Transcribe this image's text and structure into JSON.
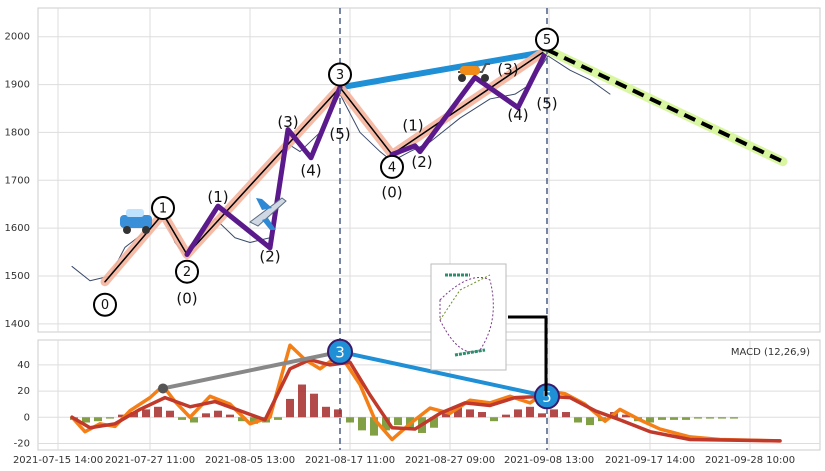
{
  "chart_data": [
    {
      "type": "line",
      "xlim": [
        0,
        782
      ],
      "ylim": [
        1383,
        2060
      ],
      "yticks": [
        1400,
        1500,
        1600,
        1700,
        1800,
        1900,
        2000
      ],
      "grid": true,
      "price": {
        "color": "#3a4a6b",
        "x": [
          34,
          52,
          72,
          87,
          112,
          125,
          137,
          149,
          162,
          177,
          197,
          212,
          232,
          247,
          262,
          282,
          302,
          322,
          342,
          354,
          372,
          392,
          422,
          452,
          477,
          492,
          510,
          532,
          552,
          572
        ],
        "values": [
          1520,
          1490,
          1500,
          1560,
          1600,
          1630,
          1570,
          1540,
          1580,
          1620,
          1580,
          1570,
          1580,
          1780,
          1760,
          1800,
          1880,
          1800,
          1760,
          1740,
          1760,
          1780,
          1830,
          1870,
          1880,
          1900,
          1960,
          1930,
          1910,
          1880
        ]
      },
      "impulse": {
        "color": "#f5b49c",
        "outline_color": "#000000",
        "x": [
          67,
          125,
          149,
          302,
          354,
          509
        ],
        "values": [
          1488,
          1630,
          1545,
          1894,
          1754,
          1973
        ]
      },
      "subwaves": {
        "color": "#5b1a8b",
        "waves": [
          {
            "x": [
              149,
              180,
              232,
              250,
              273,
              302
            ],
            "values": [
              1545,
              1646,
              1559,
              1806,
              1747,
              1894
            ]
          },
          {
            "x": [
              354,
              377,
              382,
              437,
              480,
              509
            ],
            "values": [
              1754,
              1772,
              1760,
              1915,
              1852,
              1973
            ]
          }
        ]
      },
      "trendline": {
        "color": "#1f8fd6",
        "x": [
          302,
          509
        ],
        "values": [
          1894,
          1969
        ]
      },
      "projection": {
        "color": "#000000",
        "underlay_color": "#d9f7a0",
        "x": [
          509,
          745
        ],
        "values": [
          1973,
          1739
        ]
      },
      "vlines": [
        302,
        509
      ],
      "annotations": [
        {
          "text": "0",
          "x": 67,
          "y": 1440,
          "circled": true
        },
        {
          "text": "1",
          "x": 125,
          "y": 1642,
          "circled": true
        },
        {
          "text": "2",
          "x": 149,
          "y": 1509,
          "circled": true
        },
        {
          "text": "3",
          "x": 302,
          "y": 1921,
          "circled": true
        },
        {
          "text": "4",
          "x": 354,
          "y": 1728,
          "circled": true
        },
        {
          "text": "5",
          "x": 509,
          "y": 1994,
          "circled": true
        },
        {
          "text": "(0)",
          "x": 149,
          "y": 1454
        },
        {
          "text": "(1)",
          "x": 180,
          "y": 1666
        },
        {
          "text": "(2)",
          "x": 232,
          "y": 1542
        },
        {
          "text": "(3)",
          "x": 250,
          "y": 1823
        },
        {
          "text": "(4)",
          "x": 273,
          "y": 1722
        },
        {
          "text": "(5)",
          "x": 302,
          "y": 1798
        },
        {
          "text": "(0)",
          "x": 354,
          "y": 1676
        },
        {
          "text": "(1)",
          "x": 375,
          "y": 1816
        },
        {
          "text": "(2)",
          "x": 384,
          "y": 1739
        },
        {
          "text": "(3)",
          "x": 470,
          "y": 1933
        },
        {
          "text": "(4)",
          "x": 480,
          "y": 1837
        },
        {
          "text": "(5)",
          "x": 509,
          "y": 1862
        }
      ]
    },
    {
      "type": "line",
      "xlim": [
        0,
        782
      ],
      "ylim": [
        -25,
        59
      ],
      "yticks": [
        -20,
        0,
        20,
        40
      ],
      "grid": true,
      "xticks": [
        {
          "value": 20,
          "label": "2021-07-15 14:00"
        },
        {
          "value": 112,
          "label": "2021-07-27 11:00"
        },
        {
          "value": 212,
          "label": "2021-08-05 13:00"
        },
        {
          "value": 312,
          "label": "2021-08-17 11:00"
        },
        {
          "value": 412,
          "label": "2021-08-27 09:00"
        },
        {
          "value": 511,
          "label": "2021-09-08 13:00"
        },
        {
          "value": 612,
          "label": "2021-09-17 14:00"
        },
        {
          "value": 712,
          "label": "2021-09-28 10:00"
        }
      ],
      "legend_text": "MACD (12,26,9)",
      "series": [
        {
          "color": "#f57f17",
          "x": [
            34,
            47,
            62,
            77,
            92,
            112,
            125,
            137,
            152,
            172,
            192,
            212,
            232,
            252,
            267,
            282,
            302,
            322,
            337,
            354,
            372,
            392,
            412,
            432,
            452,
            472,
            492,
            510,
            527,
            547,
            567,
            582,
            602,
            622,
            652,
            682,
            742
          ],
          "values": [
            0,
            -11,
            -5,
            -7,
            5,
            15,
            24,
            12,
            0,
            16,
            10,
            -5,
            0,
            55,
            44,
            37,
            48,
            25,
            -2,
            -17,
            -5,
            7,
            3,
            13,
            11,
            16,
            11,
            20,
            18,
            10,
            -3,
            6,
            -2,
            -9,
            -15,
            -17,
            -18
          ]
        },
        {
          "color": "#c0392b",
          "x": [
            34,
            52,
            77,
            102,
            127,
            152,
            177,
            202,
            227,
            252,
            272,
            292,
            312,
            332,
            354,
            377,
            402,
            427,
            452,
            477,
            507,
            532,
            557,
            582,
            612,
            652,
            742
          ],
          "values": [
            0,
            -8,
            -5,
            6,
            15,
            8,
            12,
            5,
            -2,
            37,
            44,
            40,
            42,
            17,
            -8,
            -9,
            3,
            11,
            9,
            15,
            16,
            15,
            5,
            -2,
            -11,
            -17,
            -18
          ]
        }
      ],
      "histogram": {
        "positive_color": "#a52a2a",
        "negative_color": "#6b8e23",
        "x": [
          36,
          48,
          60,
          72,
          84,
          96,
          108,
          120,
          132,
          144,
          156,
          168,
          180,
          192,
          204,
          216,
          228,
          240,
          252,
          264,
          276,
          288,
          300,
          312,
          324,
          336,
          348,
          360,
          372,
          384,
          396,
          408,
          420,
          432,
          444,
          456,
          468,
          480,
          492,
          504,
          516,
          528,
          540,
          552,
          564,
          576,
          588,
          600,
          612,
          624,
          636,
          648,
          660,
          672,
          684,
          696,
          708,
          720,
          732,
          744
        ],
        "values": [
          -2,
          -4,
          -3,
          -1,
          2,
          4,
          6,
          8,
          5,
          -2,
          -4,
          3,
          5,
          2,
          -3,
          -5,
          -4,
          -2,
          14,
          25,
          18,
          8,
          6,
          -4,
          -10,
          -14,
          -10,
          -6,
          -8,
          -12,
          -8,
          4,
          8,
          6,
          4,
          -3,
          2,
          6,
          8,
          3,
          6,
          4,
          -4,
          -6,
          -3,
          4,
          2,
          -3,
          -4,
          -2,
          -2,
          -2,
          -1,
          -1,
          -1,
          -1,
          0,
          0,
          0,
          0
        ]
      },
      "trendlines": [
        {
          "color": "#888888",
          "x": [
            125,
            302
          ],
          "values": [
            22,
            50
          ]
        },
        {
          "color": "#1f8fd6",
          "x": [
            302,
            509
          ],
          "values": [
            50,
            16
          ]
        }
      ],
      "annotations": [
        {
          "text": "3",
          "x": 302,
          "y": 50,
          "circled": true
        },
        {
          "text": "5",
          "x": 509,
          "y": 16,
          "circled": true
        }
      ]
    }
  ]
}
